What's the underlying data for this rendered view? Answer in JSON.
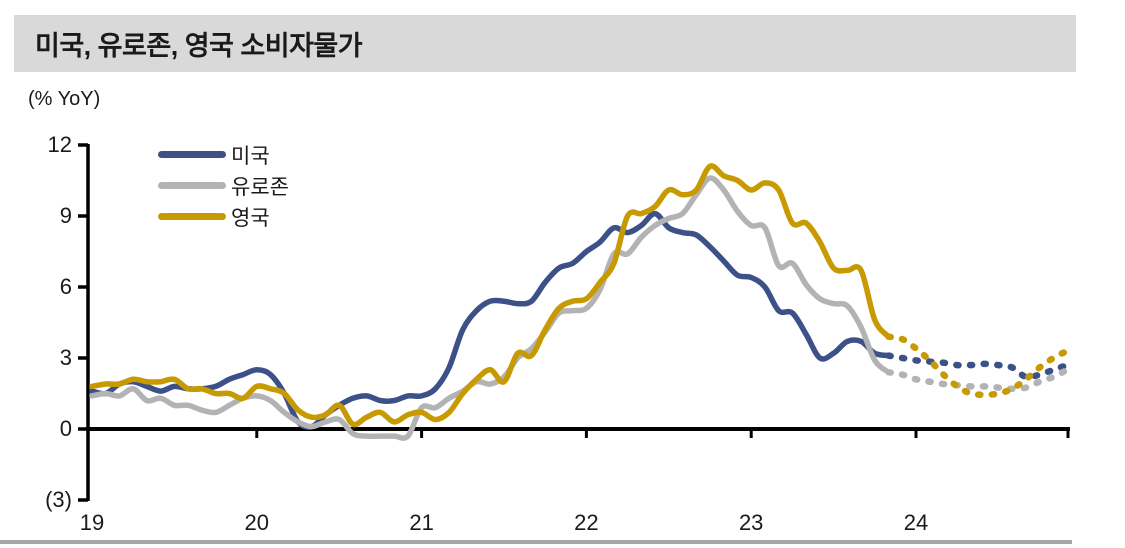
{
  "header": {
    "title": "미국, 유로존, 영국 소비자물가"
  },
  "unit_label": "(% YoY)",
  "colors": {
    "title_bar_bg": "#d9d9d9",
    "axis": "#000000",
    "us_line": "#3D5189",
    "eurozone_line": "#B3B3B6",
    "uk_line": "#C79A02",
    "bottom_rule": "#a6a6a6"
  },
  "chart_data": {
    "type": "line",
    "title": "미국, 유로존, 영국 소비자물가",
    "ylabel": "(% YoY)",
    "xlabel": "",
    "ylim": [
      -3,
      12
    ],
    "grid": false,
    "legend_position": "inside-top-left",
    "x_frequency": "monthly",
    "x_start_label": "19",
    "y_ticks": [
      {
        "label": "12",
        "value": 12
      },
      {
        "label": "9",
        "value": 9
      },
      {
        "label": "6",
        "value": 6
      },
      {
        "label": "3",
        "value": 3
      },
      {
        "label": "0",
        "value": 0
      },
      {
        "label": "(3)",
        "value": -3
      }
    ],
    "x_ticks": [
      {
        "label": "19",
        "month": 0
      },
      {
        "label": "20",
        "month": 12
      },
      {
        "label": "21",
        "month": 24
      },
      {
        "label": "22",
        "month": 36
      },
      {
        "label": "23",
        "month": 48
      },
      {
        "label": "24",
        "month": 60
      }
    ],
    "forecast_style": "dotted",
    "series": [
      {
        "name": "미국",
        "color": "#3D5189",
        "actual": [
          1.6,
          1.5,
          1.9,
          2.0,
          1.8,
          1.6,
          1.8,
          1.7,
          1.7,
          1.8,
          2.1,
          2.3,
          2.5,
          2.3,
          1.5,
          0.3,
          0.1,
          0.6,
          1.0,
          1.3,
          1.4,
          1.2,
          1.2,
          1.4,
          1.4,
          1.7,
          2.6,
          4.2,
          5.0,
          5.4,
          5.4,
          5.3,
          5.4,
          6.2,
          6.8,
          7.0,
          7.5,
          7.9,
          8.5,
          8.3,
          8.6,
          9.1,
          8.5,
          8.3,
          8.2,
          7.7,
          7.1,
          6.5,
          6.4,
          6.0,
          5.0,
          4.9,
          4.0,
          3.0,
          3.2,
          3.7,
          3.7,
          3.2,
          3.1
        ],
        "forecast": [
          3.0,
          2.9,
          2.85,
          2.8,
          2.7,
          2.7,
          2.75,
          2.7,
          2.6,
          2.2,
          2.3,
          2.5,
          2.7
        ]
      },
      {
        "name": "유로존",
        "color": "#B3B3B6",
        "actual": [
          1.4,
          1.5,
          1.4,
          1.7,
          1.2,
          1.3,
          1.0,
          1.0,
          0.8,
          0.7,
          1.0,
          1.3,
          1.4,
          1.2,
          0.7,
          0.3,
          0.1,
          0.3,
          0.4,
          -0.2,
          -0.3,
          -0.3,
          -0.3,
          -0.3,
          0.9,
          0.9,
          1.3,
          1.6,
          2.0,
          1.9,
          2.2,
          3.0,
          3.4,
          4.1,
          4.9,
          5.0,
          5.1,
          5.9,
          7.4,
          7.4,
          8.1,
          8.6,
          8.9,
          9.1,
          9.9,
          10.6,
          10.1,
          9.2,
          8.6,
          8.5,
          6.9,
          7.0,
          6.1,
          5.5,
          5.3,
          5.2,
          4.3,
          2.9,
          2.4
        ],
        "forecast": [
          2.3,
          2.1,
          2.0,
          1.9,
          1.85,
          1.8,
          1.8,
          1.75,
          1.7,
          1.75,
          2.0,
          2.2,
          2.5
        ]
      },
      {
        "name": "영국",
        "color": "#C79A02",
        "actual": [
          1.8,
          1.9,
          1.9,
          2.1,
          2.0,
          2.0,
          2.1,
          1.7,
          1.7,
          1.5,
          1.5,
          1.3,
          1.8,
          1.7,
          1.5,
          0.8,
          0.5,
          0.6,
          1.0,
          0.2,
          0.5,
          0.7,
          0.3,
          0.6,
          0.7,
          0.4,
          0.7,
          1.5,
          2.1,
          2.5,
          2.0,
          3.2,
          3.1,
          4.2,
          5.1,
          5.4,
          5.5,
          6.2,
          7.0,
          9.0,
          9.1,
          9.4,
          10.1,
          9.9,
          10.1,
          11.1,
          10.7,
          10.5,
          10.1,
          10.4,
          10.1,
          8.7,
          8.7,
          7.9,
          6.8,
          6.7,
          6.7,
          4.6,
          3.9
        ],
        "forecast": [
          3.8,
          3.4,
          2.9,
          2.3,
          1.8,
          1.5,
          1.45,
          1.5,
          1.7,
          2.1,
          2.6,
          3.0,
          3.3
        ]
      }
    ]
  }
}
